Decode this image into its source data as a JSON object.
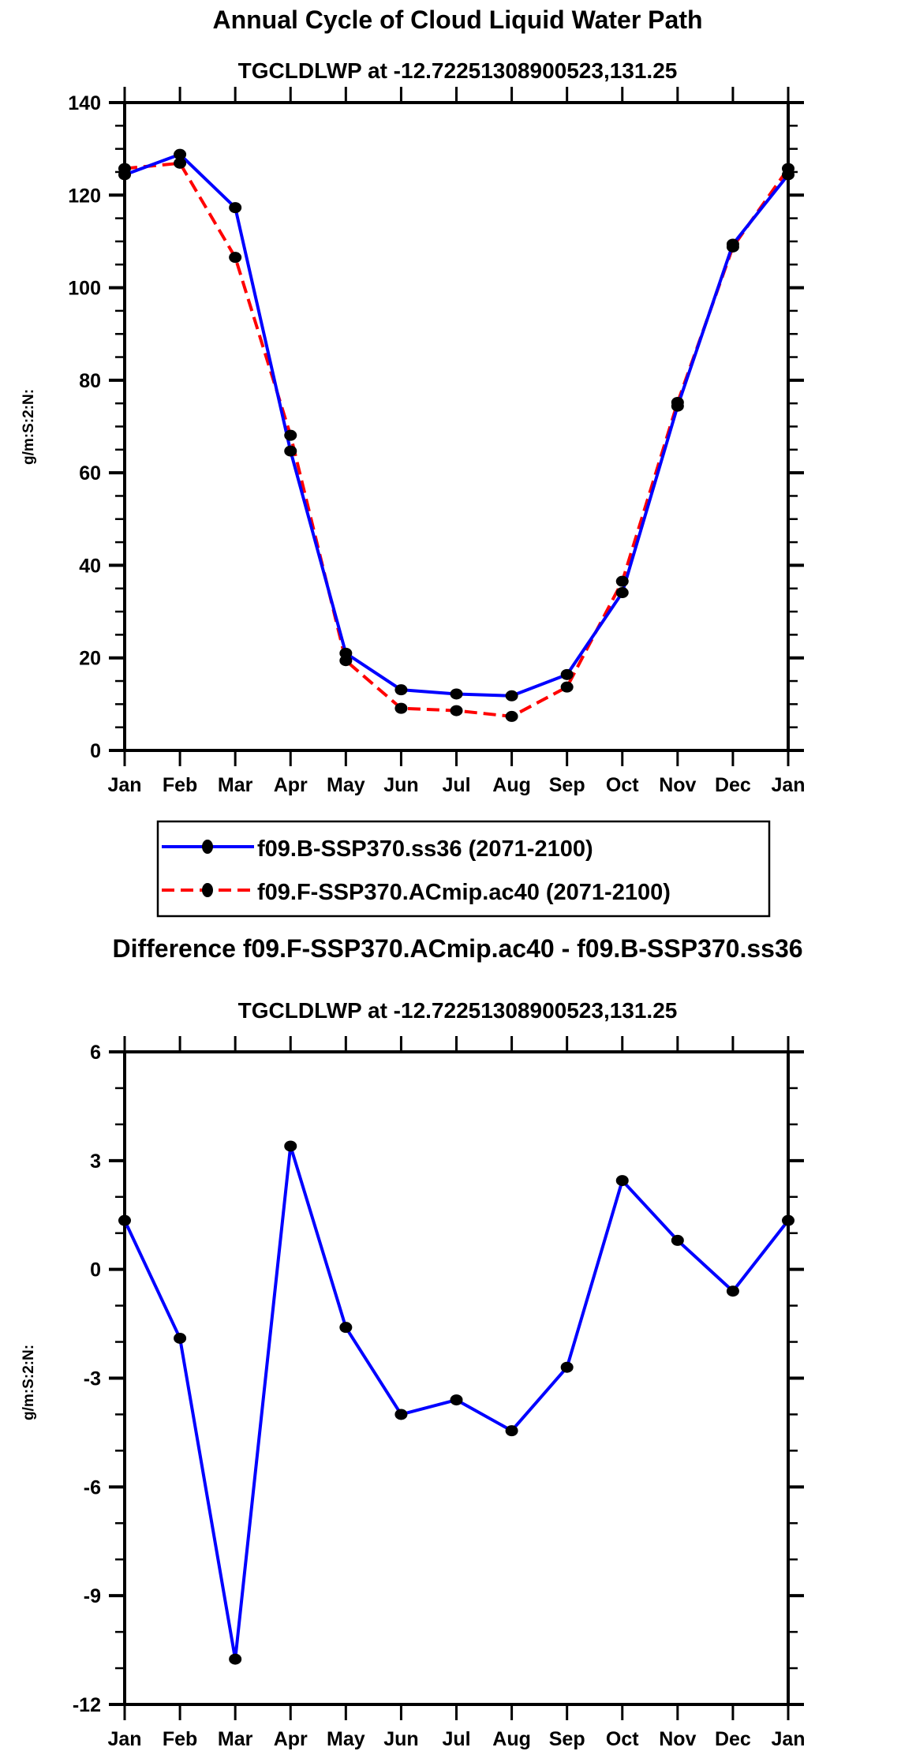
{
  "chart_data": [
    {
      "type": "line",
      "title": "Annual Cycle of Cloud Liquid Water Path",
      "subtitle": "TGCLDLWP at -12.72251308900523,131.25",
      "xlabel": "",
      "ylabel": "g/m:S:2:N:",
      "categories": [
        "Jan",
        "Feb",
        "Mar",
        "Apr",
        "May",
        "Jun",
        "Jul",
        "Aug",
        "Sep",
        "Oct",
        "Nov",
        "Dec",
        "Jan"
      ],
      "ylim": [
        0,
        140
      ],
      "yticks": [
        0,
        20,
        40,
        60,
        80,
        100,
        120,
        140
      ],
      "ytick_labels": [
        "0",
        "20",
        "40",
        "60",
        "80",
        "100",
        "120",
        "140"
      ],
      "minor_step": 5,
      "series": [
        {
          "name": "f09.B-SSP370.ss36 (2071-2100)",
          "color": "#0000ff",
          "dash": "solid",
          "values": [
            124.4,
            128.8,
            117.3,
            64.7,
            21.0,
            13.1,
            12.2,
            11.8,
            16.4,
            34.1,
            74.4,
            109.4,
            124.4
          ]
        },
        {
          "name": "f09.F-SSP370.ACmip.ac40 (2071-2100)",
          "color": "#ff0000",
          "dash": "dashed",
          "values": [
            125.75,
            126.9,
            106.55,
            68.1,
            19.4,
            9.1,
            8.6,
            7.35,
            13.7,
            36.55,
            75.2,
            108.8,
            125.75
          ]
        }
      ],
      "legend": {
        "placement": "below",
        "entries": [
          "f09.B-SSP370.ss36 (2071-2100)",
          "f09.F-SSP370.ACmip.ac40 (2071-2100)"
        ]
      }
    },
    {
      "type": "line",
      "title": "Difference f09.F-SSP370.ACmip.ac40 - f09.B-SSP370.ss36",
      "subtitle": "TGCLDLWP at -12.72251308900523,131.25",
      "xlabel": "",
      "ylabel": "g/m:S:2:N:",
      "categories": [
        "Jan",
        "Feb",
        "Mar",
        "Apr",
        "May",
        "Jun",
        "Jul",
        "Aug",
        "Sep",
        "Oct",
        "Nov",
        "Dec",
        "Jan"
      ],
      "ylim": [
        -12,
        6
      ],
      "yticks": [
        -12,
        -9,
        -6,
        -3,
        0,
        3,
        6
      ],
      "ytick_labels": [
        "-12",
        "-9",
        "-6",
        "-3",
        "0",
        "3",
        "6"
      ],
      "minor_step": 1,
      "series": [
        {
          "name": "difference",
          "color": "#0000ff",
          "dash": "solid",
          "values": [
            1.35,
            -1.9,
            -10.75,
            3.4,
            -1.6,
            -4.0,
            -3.6,
            -4.45,
            -2.7,
            2.45,
            0.8,
            -0.6,
            1.35
          ]
        }
      ]
    }
  ]
}
